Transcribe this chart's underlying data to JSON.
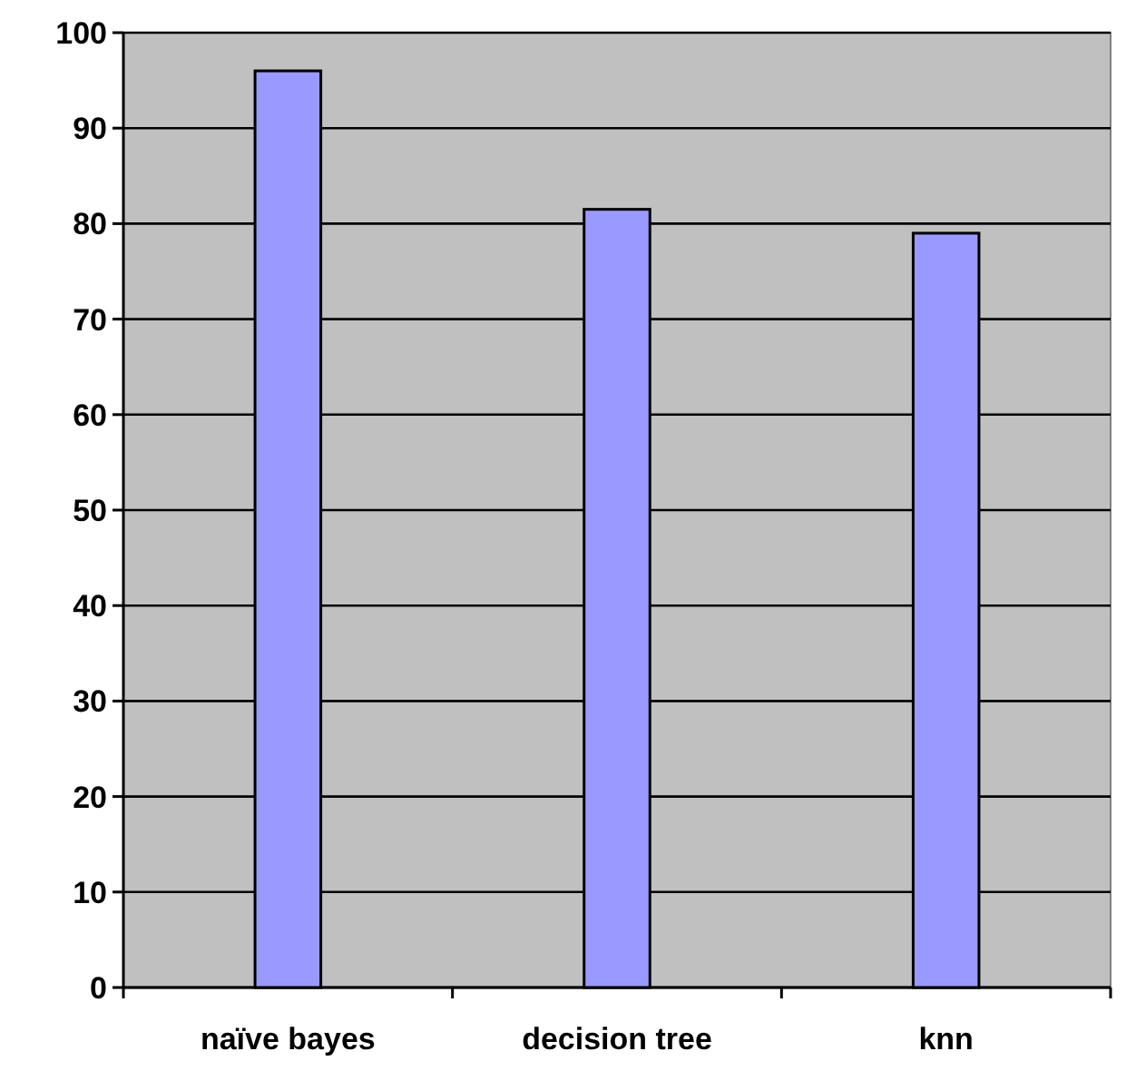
{
  "chart_data": {
    "type": "bar",
    "categories": [
      "naïve bayes",
      "decision tree",
      "knn"
    ],
    "values": [
      96,
      81.5,
      79
    ],
    "color": "#9999ff",
    "ylim": [
      0,
      100
    ],
    "yticks": [
      0,
      10,
      20,
      30,
      40,
      50,
      60,
      70,
      80,
      90,
      100
    ],
    "grid": "y"
  }
}
